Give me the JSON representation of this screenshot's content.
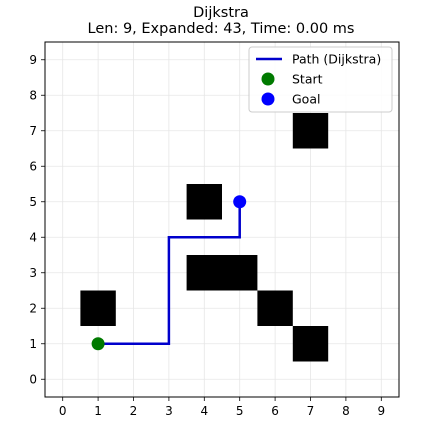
{
  "chart_data": {
    "type": "scatter",
    "title": "Dijkstra",
    "subtitle": "Len: 9, Expanded: 43, Time: 0.00 ms",
    "xlim": [
      -0.5,
      9.5
    ],
    "ylim": [
      -0.5,
      9.5
    ],
    "x_ticks": [
      "0",
      "1",
      "2",
      "3",
      "4",
      "5",
      "6",
      "7",
      "8",
      "9"
    ],
    "y_ticks": [
      "0",
      "1",
      "2",
      "3",
      "4",
      "5",
      "6",
      "7",
      "8",
      "9"
    ],
    "grid": true,
    "legend_placement": "top-right",
    "obstacles": [
      {
        "x": 1,
        "y": 2
      },
      {
        "x": 4,
        "y": 3
      },
      {
        "x": 5,
        "y": 3
      },
      {
        "x": 4,
        "y": 5
      },
      {
        "x": 6,
        "y": 2
      },
      {
        "x": 7,
        "y": 1
      },
      {
        "x": 7,
        "y": 7
      }
    ],
    "path": {
      "name": "Path (Dijkstra)",
      "color": "#0000cc",
      "points": [
        [
          1,
          1
        ],
        [
          2,
          1
        ],
        [
          3,
          1
        ],
        [
          3,
          2
        ],
        [
          3,
          3
        ],
        [
          3,
          4
        ],
        [
          4,
          4
        ],
        [
          5,
          4
        ],
        [
          5,
          5
        ]
      ]
    },
    "start": {
      "name": "Start",
      "x": 1,
      "y": 1,
      "color": "#007a00"
    },
    "goal": {
      "name": "Goal",
      "x": 5,
      "y": 5,
      "color": "#0000ff"
    }
  }
}
